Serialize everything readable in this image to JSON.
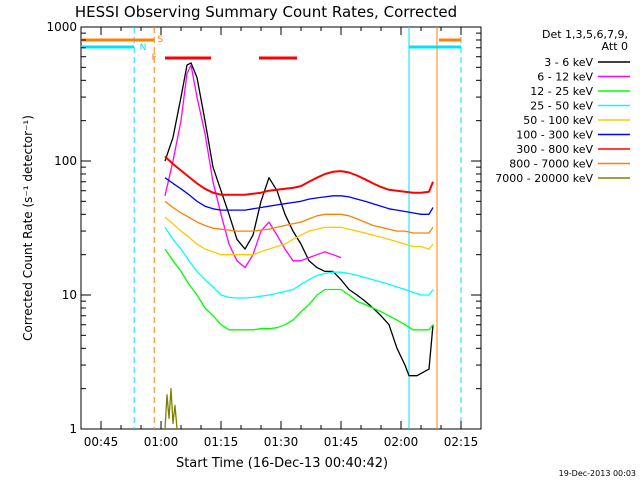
{
  "chart_data": {
    "type": "line",
    "title": "HESSI Observing Summary Count Rates, Corrected",
    "xlabel": "Start Time (16-Dec-13 00:40:42)",
    "ylabel": "Corrected Count Rate (s⁻¹ detector⁻¹)",
    "yscale": "log",
    "ylim": [
      1,
      1000
    ],
    "xlim_minutes_after_0040": [
      0,
      100
    ],
    "x_ticks": [
      {
        "label": "00:45",
        "min": 5
      },
      {
        "label": "01:00",
        "min": 20
      },
      {
        "label": "01:15",
        "min": 35
      },
      {
        "label": "01:30",
        "min": 50
      },
      {
        "label": "01:45",
        "min": 65
      },
      {
        "label": "02:00",
        "min": 80
      },
      {
        "label": "02:15",
        "min": 95
      }
    ],
    "y_ticks": [
      {
        "label": "1",
        "value": 1
      },
      {
        "label": "10",
        "value": 10
      },
      {
        "label": "100",
        "value": 100
      },
      {
        "label": "1000",
        "value": 1000
      }
    ],
    "legend_header": [
      "Det 1,3,5,6,7,9,",
      "Att 0"
    ],
    "legend_position": "right",
    "timestamp": "19-Dec-2013 00:03",
    "flags": [
      {
        "label": "S",
        "color": "#ff8000"
      },
      {
        "label": "N",
        "color": "#00e0ff"
      },
      {
        "label": "F",
        "color": "#ff8000"
      }
    ],
    "series": [
      {
        "name": "3 - 6 keV",
        "color": "#000000",
        "points": [
          [
            21,
            100
          ],
          [
            23,
            150
          ],
          [
            25,
            300
          ],
          [
            26.5,
            520
          ],
          [
            27.5,
            540
          ],
          [
            29,
            420
          ],
          [
            31,
            200
          ],
          [
            33,
            90
          ],
          [
            35,
            60
          ],
          [
            37,
            40
          ],
          [
            39,
            26
          ],
          [
            41,
            22
          ],
          [
            43,
            28
          ],
          [
            45,
            50
          ],
          [
            47,
            75
          ],
          [
            49,
            60
          ],
          [
            51,
            40
          ],
          [
            53,
            30
          ],
          [
            55,
            24
          ],
          [
            57,
            18
          ],
          [
            59,
            16
          ],
          [
            61,
            15
          ],
          [
            63,
            15
          ],
          [
            65,
            13
          ],
          [
            67,
            11
          ],
          [
            69,
            10
          ],
          [
            71,
            9
          ],
          [
            73,
            8
          ],
          [
            75,
            7
          ],
          [
            77,
            6
          ],
          [
            79,
            4
          ],
          [
            81,
            3
          ],
          [
            82,
            2.5
          ],
          [
            84,
            2.5
          ],
          [
            87,
            2.8
          ],
          [
            88,
            6
          ]
        ]
      },
      {
        "name": "6 - 12 keV",
        "color": "#ff00ff",
        "points": [
          [
            21,
            55
          ],
          [
            23,
            100
          ],
          [
            25,
            200
          ],
          [
            26.5,
            450
          ],
          [
            27.5,
            520
          ],
          [
            29,
            300
          ],
          [
            31,
            160
          ],
          [
            33,
            70
          ],
          [
            35,
            40
          ],
          [
            37,
            24
          ],
          [
            39,
            18
          ],
          [
            41,
            16
          ],
          [
            43,
            20
          ],
          [
            45,
            30
          ],
          [
            47,
            35
          ],
          [
            49,
            28
          ],
          [
            51,
            22
          ],
          [
            53,
            18
          ],
          [
            55,
            18
          ],
          [
            57,
            19
          ],
          [
            59,
            20
          ],
          [
            61,
            21
          ],
          [
            63,
            20
          ],
          [
            65,
            19
          ]
        ]
      },
      {
        "name": "12 - 25 keV",
        "color": "#00ff00",
        "points": [
          [
            21,
            22
          ],
          [
            23,
            18
          ],
          [
            25,
            15
          ],
          [
            27,
            12
          ],
          [
            29,
            10
          ],
          [
            31,
            8
          ],
          [
            33,
            7
          ],
          [
            35,
            6
          ],
          [
            37,
            5.5
          ],
          [
            39,
            5.5
          ],
          [
            41,
            5.5
          ],
          [
            43,
            5.5
          ],
          [
            45,
            5.6
          ],
          [
            47,
            5.6
          ],
          [
            49,
            5.7
          ],
          [
            51,
            6
          ],
          [
            53,
            6.5
          ],
          [
            55,
            7.5
          ],
          [
            57,
            8.5
          ],
          [
            59,
            10
          ],
          [
            61,
            11
          ],
          [
            63,
            11
          ],
          [
            65,
            11
          ],
          [
            67,
            10
          ],
          [
            69,
            9
          ],
          [
            71,
            8.5
          ],
          [
            73,
            8
          ],
          [
            75,
            7.5
          ],
          [
            77,
            7
          ],
          [
            79,
            6.5
          ],
          [
            81,
            6
          ],
          [
            83,
            5.5
          ],
          [
            85,
            5.5
          ],
          [
            87,
            5.5
          ],
          [
            88,
            6
          ]
        ]
      },
      {
        "name": "25 - 50 keV",
        "color": "#00ffff",
        "points": [
          [
            21,
            32
          ],
          [
            23,
            26
          ],
          [
            25,
            22
          ],
          [
            27,
            18
          ],
          [
            29,
            15
          ],
          [
            31,
            13
          ],
          [
            33,
            11.5
          ],
          [
            35,
            10
          ],
          [
            37,
            9.6
          ],
          [
            39,
            9.5
          ],
          [
            41,
            9.5
          ],
          [
            43,
            9.6
          ],
          [
            45,
            9.8
          ],
          [
            47,
            10
          ],
          [
            49,
            10.3
          ],
          [
            51,
            10.6
          ],
          [
            53,
            11
          ],
          [
            55,
            12
          ],
          [
            57,
            13
          ],
          [
            59,
            14
          ],
          [
            61,
            14.5
          ],
          [
            63,
            14.8
          ],
          [
            65,
            14.8
          ],
          [
            67,
            14.5
          ],
          [
            69,
            14
          ],
          [
            71,
            13.5
          ],
          [
            73,
            13
          ],
          [
            75,
            12.5
          ],
          [
            77,
            12
          ],
          [
            79,
            11.5
          ],
          [
            81,
            11
          ],
          [
            83,
            10.5
          ],
          [
            85,
            10
          ],
          [
            87,
            10
          ],
          [
            88,
            11
          ]
        ]
      },
      {
        "name": "50 - 100 keV",
        "color": "#ffc800",
        "points": [
          [
            21,
            38
          ],
          [
            23,
            34
          ],
          [
            25,
            30
          ],
          [
            27,
            27
          ],
          [
            29,
            24
          ],
          [
            31,
            22
          ],
          [
            33,
            21
          ],
          [
            35,
            20
          ],
          [
            37,
            20
          ],
          [
            39,
            20
          ],
          [
            41,
            20
          ],
          [
            43,
            20
          ],
          [
            45,
            21
          ],
          [
            47,
            22
          ],
          [
            49,
            23
          ],
          [
            51,
            24
          ],
          [
            53,
            26
          ],
          [
            55,
            28
          ],
          [
            57,
            30
          ],
          [
            59,
            31
          ],
          [
            61,
            32
          ],
          [
            63,
            32
          ],
          [
            65,
            32
          ],
          [
            67,
            31
          ],
          [
            69,
            30
          ],
          [
            71,
            29
          ],
          [
            73,
            28
          ],
          [
            75,
            27
          ],
          [
            77,
            26
          ],
          [
            79,
            25
          ],
          [
            81,
            24
          ],
          [
            83,
            23
          ],
          [
            85,
            23
          ],
          [
            87,
            22
          ],
          [
            88,
            24
          ]
        ]
      },
      {
        "name": "100 - 300 keV",
        "color": "#0000ff",
        "points": [
          [
            21,
            75
          ],
          [
            23,
            68
          ],
          [
            25,
            62
          ],
          [
            27,
            56
          ],
          [
            29,
            50
          ],
          [
            31,
            46
          ],
          [
            33,
            44
          ],
          [
            35,
            43
          ],
          [
            37,
            43
          ],
          [
            39,
            43
          ],
          [
            41,
            43
          ],
          [
            43,
            44
          ],
          [
            45,
            45
          ],
          [
            47,
            46
          ],
          [
            49,
            47
          ],
          [
            51,
            48
          ],
          [
            53,
            49
          ],
          [
            55,
            50
          ],
          [
            57,
            52
          ],
          [
            59,
            53
          ],
          [
            61,
            54
          ],
          [
            63,
            55
          ],
          [
            65,
            55
          ],
          [
            67,
            54
          ],
          [
            69,
            52
          ],
          [
            71,
            50
          ],
          [
            73,
            48
          ],
          [
            75,
            46
          ],
          [
            77,
            44
          ],
          [
            79,
            43
          ],
          [
            81,
            42
          ],
          [
            83,
            41
          ],
          [
            85,
            40
          ],
          [
            87,
            40
          ],
          [
            88,
            45
          ]
        ]
      },
      {
        "name": "300 - 800 keV",
        "color": "#ff0000",
        "points": [
          [
            21,
            108
          ],
          [
            23,
            95
          ],
          [
            25,
            85
          ],
          [
            27,
            76
          ],
          [
            29,
            68
          ],
          [
            31,
            62
          ],
          [
            33,
            58
          ],
          [
            35,
            56
          ],
          [
            37,
            56
          ],
          [
            39,
            56
          ],
          [
            41,
            56
          ],
          [
            43,
            57
          ],
          [
            45,
            58
          ],
          [
            47,
            60
          ],
          [
            49,
            61
          ],
          [
            51,
            62
          ],
          [
            53,
            63
          ],
          [
            55,
            65
          ],
          [
            57,
            70
          ],
          [
            59,
            75
          ],
          [
            61,
            80
          ],
          [
            63,
            83
          ],
          [
            65,
            84
          ],
          [
            67,
            82
          ],
          [
            69,
            78
          ],
          [
            71,
            73
          ],
          [
            73,
            68
          ],
          [
            75,
            64
          ],
          [
            77,
            61
          ],
          [
            79,
            60
          ],
          [
            81,
            59
          ],
          [
            83,
            58
          ],
          [
            85,
            58
          ],
          [
            87,
            59
          ],
          [
            88,
            70
          ]
        ]
      },
      {
        "name": "800 - 7000 keV",
        "color": "#ff8000",
        "points": [
          [
            21,
            50
          ],
          [
            23,
            45
          ],
          [
            25,
            41
          ],
          [
            27,
            38
          ],
          [
            29,
            35
          ],
          [
            31,
            33
          ],
          [
            33,
            31.5
          ],
          [
            35,
            31
          ],
          [
            37,
            30.5
          ],
          [
            39,
            30
          ],
          [
            41,
            30
          ],
          [
            43,
            30
          ],
          [
            45,
            30.5
          ],
          [
            47,
            31
          ],
          [
            49,
            32
          ],
          [
            51,
            33
          ],
          [
            53,
            34
          ],
          [
            55,
            35
          ],
          [
            57,
            37
          ],
          [
            59,
            39
          ],
          [
            61,
            40
          ],
          [
            63,
            40
          ],
          [
            65,
            40
          ],
          [
            67,
            39
          ],
          [
            69,
            37
          ],
          [
            71,
            35
          ],
          [
            73,
            33
          ],
          [
            75,
            32
          ],
          [
            77,
            31
          ],
          [
            79,
            30
          ],
          [
            81,
            30
          ],
          [
            83,
            29
          ],
          [
            85,
            29
          ],
          [
            87,
            29
          ],
          [
            88,
            32
          ]
        ]
      },
      {
        "name": "7000 - 20000 keV",
        "color": "#808000",
        "points": [
          [
            21,
            1
          ],
          [
            21.5,
            1.8
          ],
          [
            22,
            1.2
          ],
          [
            22.5,
            2
          ],
          [
            23,
            1.1
          ],
          [
            23.5,
            1.5
          ],
          [
            24,
            1
          ]
        ]
      }
    ]
  }
}
